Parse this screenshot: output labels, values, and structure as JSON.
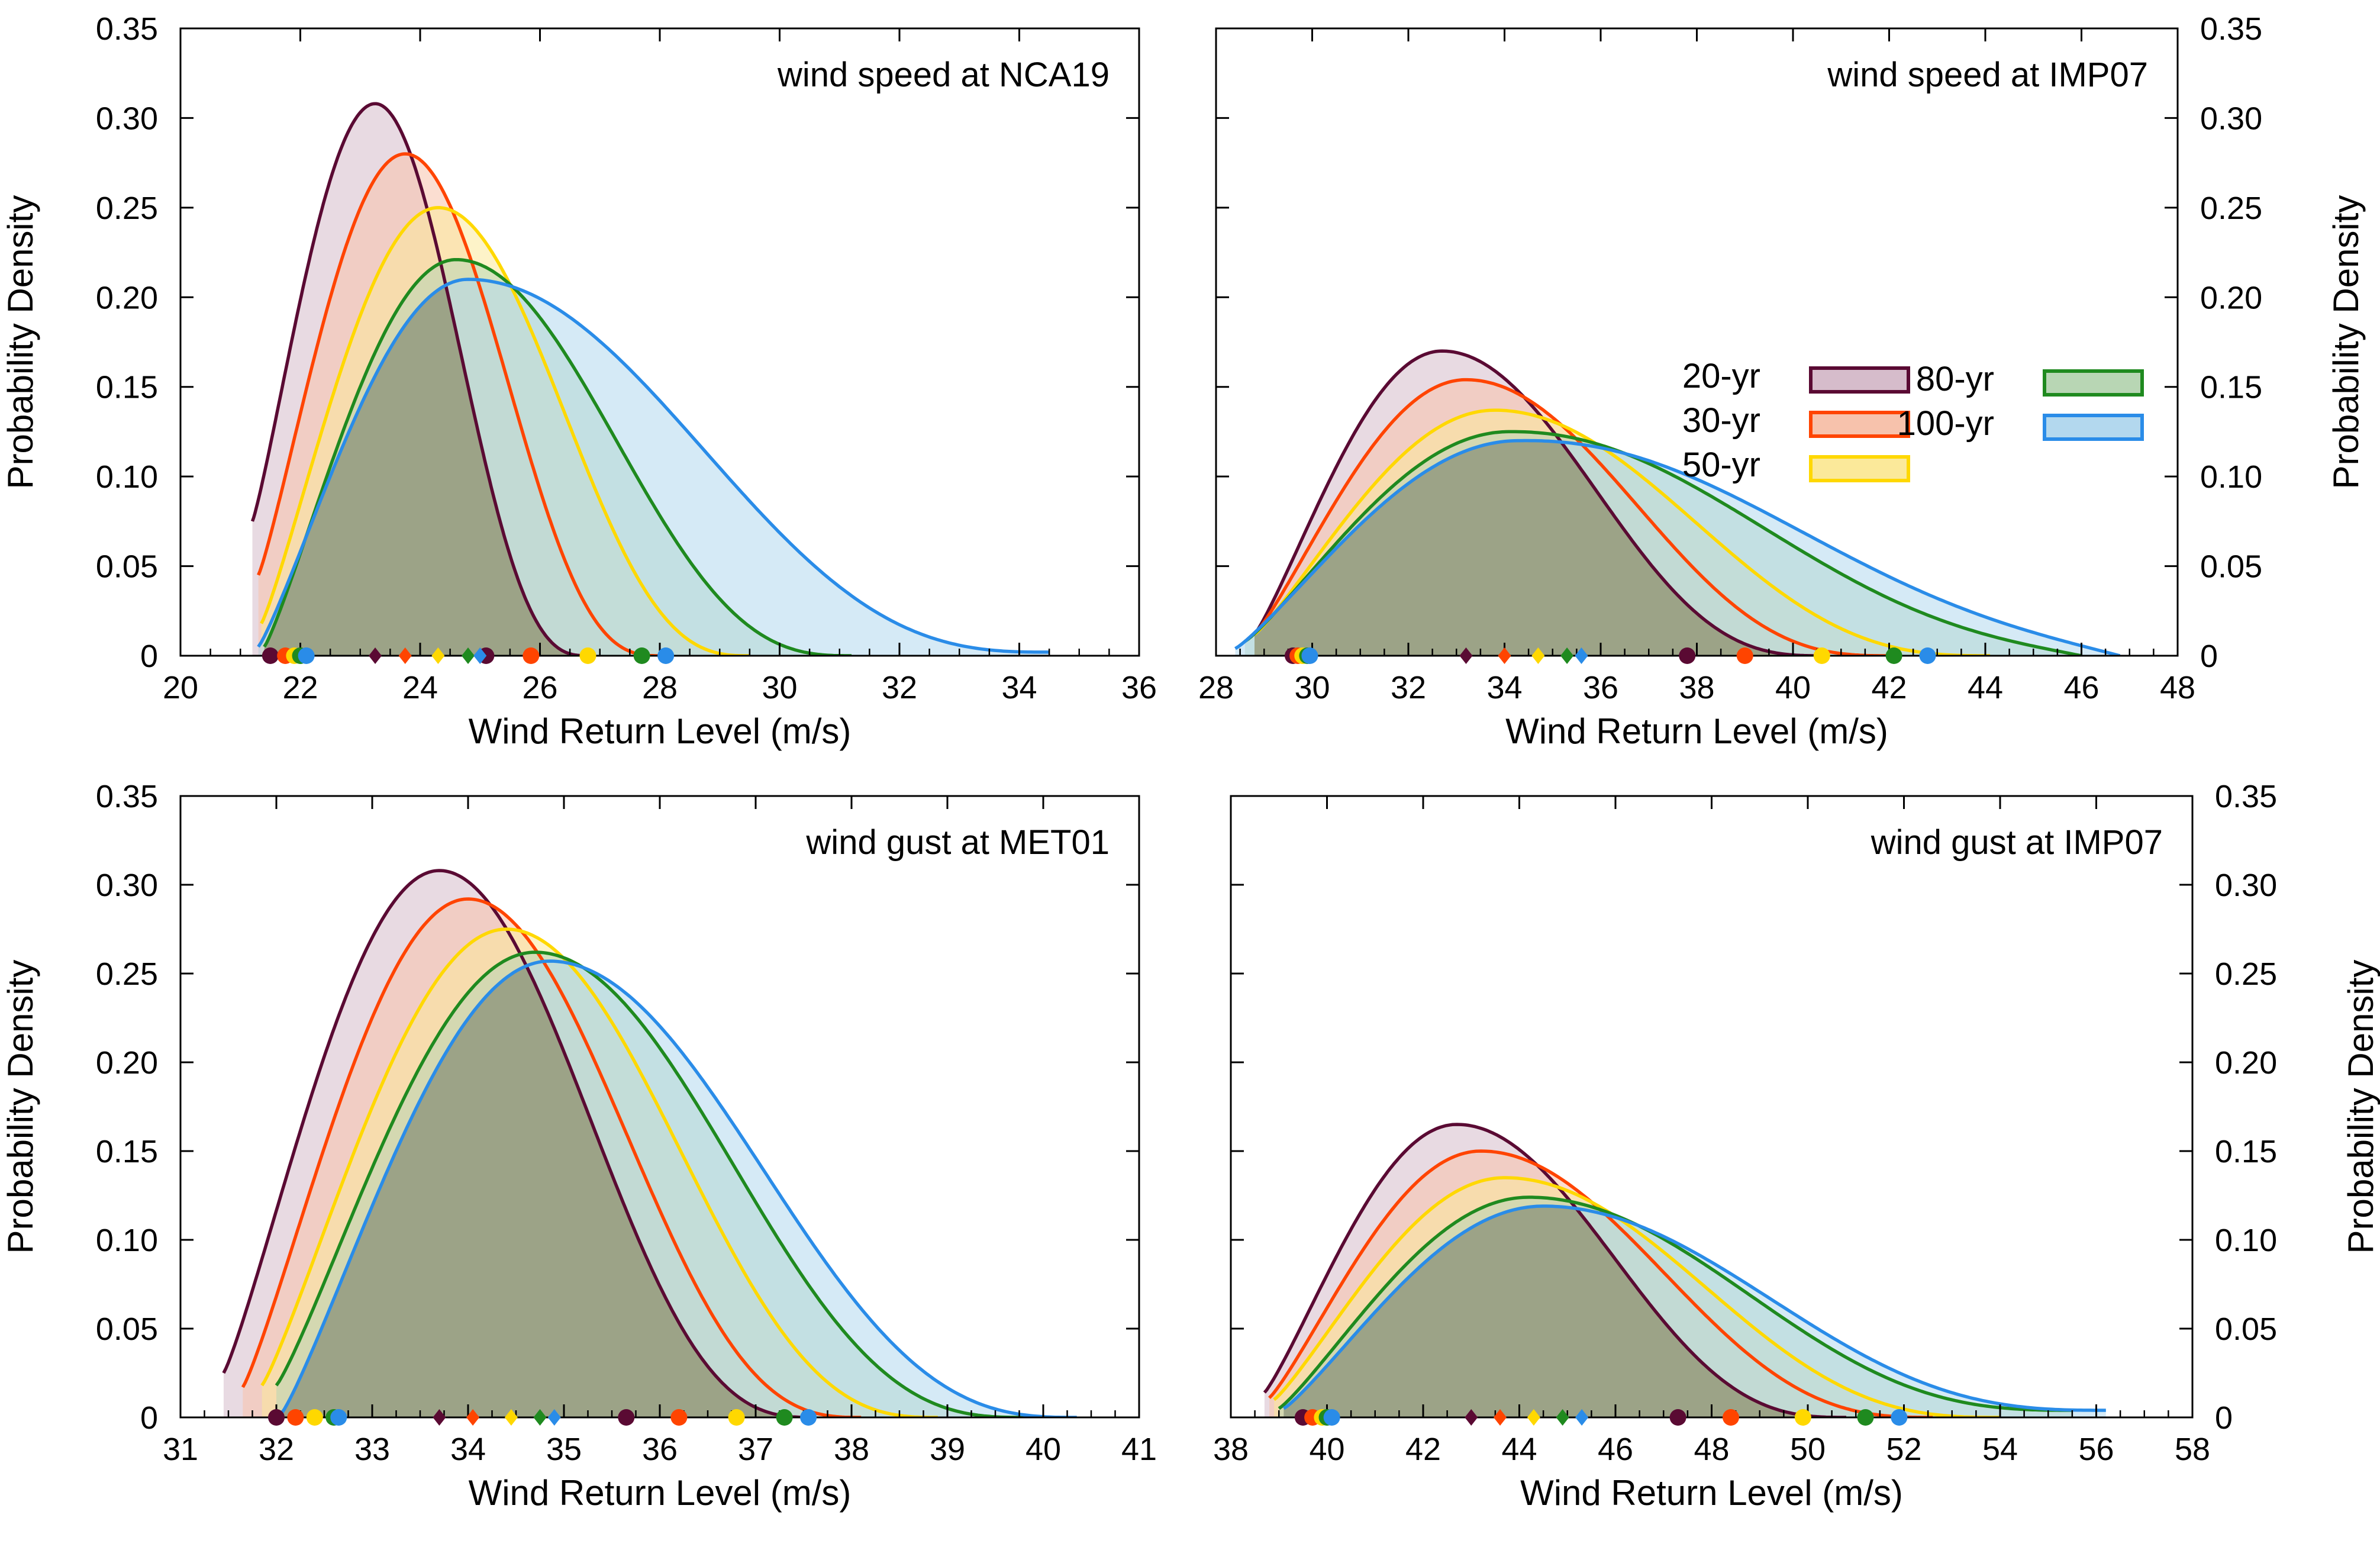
{
  "series_meta": [
    {
      "name": "20-yr",
      "color": "#5a0a33",
      "fill": "#d6bccb"
    },
    {
      "name": "30-yr",
      "color": "#ff4400",
      "fill": "#f7c2ac"
    },
    {
      "name": "50-yr",
      "color": "#ffd800",
      "fill": "#fbe99a"
    },
    {
      "name": "80-yr",
      "color": "#1f8a1f",
      "fill": "#b8d6b4"
    },
    {
      "name": "100-yr",
      "color": "#2a8ce8",
      "fill": "#b3d8ee"
    }
  ],
  "overlap_color": "#9aa083",
  "chart_data": [
    {
      "type": "area",
      "title": "wind speed at NCA19",
      "xlabel": "Wind Return Level (m/s)",
      "ylabel": "Probability Density",
      "ylabel_side": "left",
      "xlim": [
        20,
        36
      ],
      "ylim": [
        0,
        0.35
      ],
      "xticks": [
        "20",
        "22",
        "24",
        "26",
        "28",
        "30",
        "32",
        "34",
        "36"
      ],
      "yticks": [
        "0",
        "0.05",
        "0.10",
        "0.15",
        "0.20",
        "0.25",
        "0.30",
        "0.35"
      ],
      "ytick_labels_shown": true,
      "title_position": "top-right",
      "legend": false,
      "series": [
        {
          "name": "20-yr",
          "x_start": 21.2,
          "x_end": 26.8,
          "peak_x": 23.25,
          "peak_y": 0.308,
          "start_y": 0.075,
          "end_y": 0.0,
          "tail": 0.0
        },
        {
          "name": "30-yr",
          "x_start": 21.3,
          "x_end": 28.0,
          "peak_x": 23.75,
          "peak_y": 0.28,
          "start_y": 0.045,
          "end_y": 0.0,
          "tail": 0.0
        },
        {
          "name": "50-yr",
          "x_start": 21.35,
          "x_end": 29.5,
          "peak_x": 24.3,
          "peak_y": 0.25,
          "start_y": 0.018,
          "end_y": 0.0,
          "tail": 0.0
        },
        {
          "name": "80-yr",
          "x_start": 21.4,
          "x_end": 31.2,
          "peak_x": 24.6,
          "peak_y": 0.221,
          "start_y": 0.005,
          "end_y": 0.0,
          "tail": 0.0
        },
        {
          "name": "100-yr",
          "x_start": 21.3,
          "x_end": 34.5,
          "peak_x": 24.8,
          "peak_y": 0.21,
          "start_y": 0.005,
          "end_y": 0.002,
          "tail": 0.0
        }
      ],
      "markers": [
        {
          "series": "20-yr",
          "circles": [
            21.5,
            25.1
          ],
          "diamond": 23.25
        },
        {
          "series": "30-yr",
          "circles": [
            21.75,
            25.85
          ],
          "diamond": 23.75
        },
        {
          "name_note": "",
          "series": "50-yr",
          "circles": [
            21.9,
            26.8
          ],
          "diamond": 24.3
        },
        {
          "series": "80-yr",
          "circles": [
            22.0,
            27.7
          ],
          "diamond": 24.8
        },
        {
          "series": "100-yr",
          "circles": [
            22.1,
            28.1
          ],
          "diamond": 25.0
        }
      ]
    },
    {
      "type": "area",
      "title": "wind speed at IMP07",
      "xlabel": "Wind Return Level (m/s)",
      "ylabel": "Probability Density",
      "ylabel_side": "right",
      "xlim": [
        28,
        48
      ],
      "ylim": [
        0,
        0.35
      ],
      "xticks": [
        "28",
        "30",
        "32",
        "34",
        "36",
        "38",
        "40",
        "42",
        "44",
        "46",
        "48"
      ],
      "yticks": [
        "0",
        "0.05",
        "0.10",
        "0.15",
        "0.20",
        "0.25",
        "0.30",
        "0.35"
      ],
      "ytick_labels_shown": true,
      "title_position": "top-right",
      "legend": true,
      "legend_position": "right",
      "series": [
        {
          "name": "20-yr",
          "x_start": 28.8,
          "x_end": 40.6,
          "peak_x": 32.7,
          "peak_y": 0.17,
          "start_y": 0.012,
          "end_y": 0.0,
          "tail": 0.0
        },
        {
          "name": "30-yr",
          "x_start": 28.8,
          "x_end": 42.0,
          "peak_x": 33.2,
          "peak_y": 0.154,
          "start_y": 0.012,
          "end_y": 0.0,
          "tail": 0.0
        },
        {
          "name": "50-yr",
          "x_start": 28.8,
          "x_end": 44.1,
          "peak_x": 33.8,
          "peak_y": 0.137,
          "start_y": 0.012,
          "end_y": 0.0,
          "tail": 0.0
        },
        {
          "name": "80-yr",
          "x_start": 28.6,
          "x_end": 46.0,
          "peak_x": 34.1,
          "peak_y": 0.125,
          "start_y": 0.008,
          "end_y": 0.0,
          "tail": 0.02
        },
        {
          "name": "100-yr",
          "x_start": 28.4,
          "x_end": 46.8,
          "peak_x": 34.3,
          "peak_y": 0.12,
          "start_y": 0.004,
          "end_y": 0.0,
          "tail": 0.028
        }
      ],
      "markers": [
        {
          "series": "20-yr",
          "circles": [
            29.6,
            37.8
          ],
          "diamond": 33.2
        },
        {
          "series": "30-yr",
          "circles": [
            29.7,
            39.0
          ],
          "diamond": 34.0
        },
        {
          "series": "50-yr",
          "circles": [
            29.8,
            40.6
          ],
          "diamond": 34.7
        },
        {
          "series": "80-yr",
          "circles": [
            29.9,
            42.1
          ],
          "diamond": 35.3
        },
        {
          "series": "100-yr",
          "circles": [
            29.95,
            42.8
          ],
          "diamond": 35.6
        }
      ]
    },
    {
      "type": "area",
      "title": "wind gust at MET01",
      "xlabel": "Wind Return Level (m/s)",
      "ylabel": "Probability Density",
      "ylabel_side": "left",
      "xlim": [
        31,
        41
      ],
      "ylim": [
        0,
        0.35
      ],
      "xticks": [
        "31",
        "32",
        "33",
        "34",
        "35",
        "36",
        "37",
        "38",
        "39",
        "40",
        "41"
      ],
      "yticks": [
        "0",
        "0.05",
        "0.10",
        "0.15",
        "0.20",
        "0.25",
        "0.30",
        "0.35"
      ],
      "ytick_labels_shown": true,
      "title_position": "top-right",
      "legend": false,
      "series": [
        {
          "name": "20-yr",
          "x_start": 31.45,
          "x_end": 37.6,
          "peak_x": 33.7,
          "peak_y": 0.308,
          "start_y": 0.025,
          "end_y": 0.0,
          "tail": 0.0
        },
        {
          "name": "30-yr",
          "x_start": 31.65,
          "x_end": 38.1,
          "peak_x": 34.0,
          "peak_y": 0.292,
          "start_y": 0.017,
          "end_y": 0.0,
          "tail": 0.0
        },
        {
          "name": "50-yr",
          "x_start": 31.85,
          "x_end": 38.9,
          "peak_x": 34.4,
          "peak_y": 0.275,
          "start_y": 0.018,
          "end_y": 0.0,
          "tail": 0.0
        },
        {
          "name": "80-yr",
          "x_start": 32.0,
          "x_end": 39.8,
          "peak_x": 34.7,
          "peak_y": 0.262,
          "start_y": 0.018,
          "end_y": 0.0,
          "tail": 0.0
        },
        {
          "name": "100-yr",
          "x_start": 32.05,
          "x_end": 40.35,
          "peak_x": 34.85,
          "peak_y": 0.257,
          "start_y": 0.002,
          "end_y": 0.0,
          "tail": 0.0
        }
      ],
      "markers": [
        {
          "series": "20-yr",
          "circles": [
            32.0,
            35.65
          ],
          "diamond": 33.7
        },
        {
          "series": "30-yr",
          "circles": [
            32.2,
            36.2
          ],
          "diamond": 34.05
        },
        {
          "series": "50-yr",
          "circles": [
            32.4,
            36.8
          ],
          "diamond": 34.45
        },
        {
          "series": "80-yr",
          "circles": [
            32.6,
            37.3
          ],
          "diamond": 34.75
        },
        {
          "series": "100-yr",
          "circles": [
            32.65,
            37.55
          ],
          "diamond": 34.9
        }
      ]
    },
    {
      "type": "area",
      "title": "wind gust at IMP07",
      "xlabel": "Wind Return Level (m/s)",
      "ylabel": "Probability Density",
      "ylabel_side": "right",
      "xlim": [
        38,
        58
      ],
      "ylim": [
        0,
        0.35
      ],
      "xticks": [
        "38",
        "40",
        "42",
        "44",
        "46",
        "48",
        "50",
        "52",
        "54",
        "56",
        "58"
      ],
      "yticks": [
        "0",
        "0.05",
        "0.10",
        "0.15",
        "0.20",
        "0.25",
        "0.30",
        "0.35"
      ],
      "ytick_labels_shown": true,
      "title_position": "top-right",
      "legend": false,
      "series": [
        {
          "name": "20-yr",
          "x_start": 38.7,
          "x_end": 50.8,
          "peak_x": 42.7,
          "peak_y": 0.165,
          "start_y": 0.014,
          "end_y": 0.0,
          "tail": 0.0
        },
        {
          "name": "30-yr",
          "x_start": 38.8,
          "x_end": 52.6,
          "peak_x": 43.2,
          "peak_y": 0.15,
          "start_y": 0.011,
          "end_y": 0.0,
          "tail": 0.0
        },
        {
          "name": "50-yr",
          "x_start": 38.9,
          "x_end": 54.0,
          "peak_x": 43.7,
          "peak_y": 0.135,
          "start_y": 0.01,
          "end_y": 0.0,
          "tail": 0.0
        },
        {
          "name": "80-yr",
          "x_start": 39.0,
          "x_end": 55.5,
          "peak_x": 44.2,
          "peak_y": 0.124,
          "start_y": 0.005,
          "end_y": 0.004,
          "tail": 0.0
        },
        {
          "name": "100-yr",
          "x_start": 39.1,
          "x_end": 56.2,
          "peak_x": 44.5,
          "peak_y": 0.119,
          "start_y": 0.005,
          "end_y": 0.004,
          "tail": 0.0
        }
      ],
      "markers": [
        {
          "series": "20-yr",
          "circles": [
            39.5,
            47.3
          ],
          "diamond": 43.0
        },
        {
          "series": "30-yr",
          "circles": [
            39.7,
            48.4
          ],
          "diamond": 43.6
        },
        {
          "series": "50-yr",
          "circles": [
            39.9,
            49.9
          ],
          "diamond": 44.3
        },
        {
          "series": "80-yr",
          "circles": [
            40.0,
            51.2
          ],
          "diamond": 44.9
        },
        {
          "series": "100-yr",
          "circles": [
            40.1,
            51.9
          ],
          "diamond": 45.3
        }
      ]
    }
  ]
}
